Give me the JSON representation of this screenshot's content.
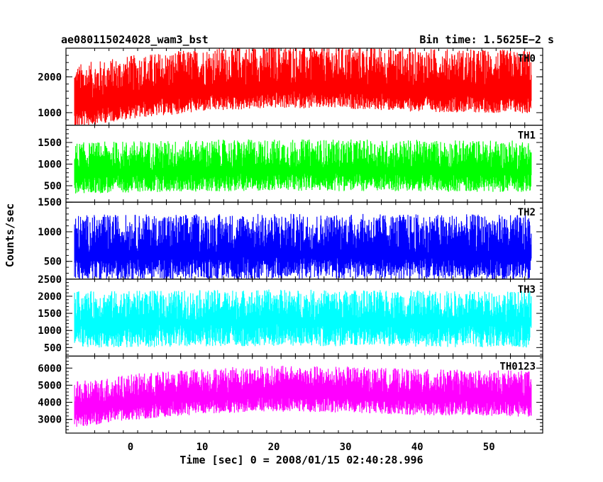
{
  "header": {
    "title": "ae080115024028_wam3_bst",
    "bin_time": "Bin time: 1.5625E−2 s"
  },
  "axes": {
    "xlabel": "Time [sec] 0 = 2008/01/15 02:40:28.996",
    "ylabel": "Counts/sec"
  },
  "chart_data": {
    "type": "line",
    "title": "ae080115024028_wam3_bst",
    "xlabel": "Time [sec] 0 = 2008/01/15 02:40:28.996",
    "ylabel": "Counts/sec",
    "xlim": [
      -9,
      57.5
    ],
    "x_range": [
      -7.8,
      55.9
    ],
    "x_ticks": [
      0,
      10,
      20,
      30,
      40,
      50
    ],
    "panels": [
      {
        "name": "TH0",
        "color": "#ff0000",
        "ylim": [
          650,
          2800
        ],
        "yticks": [
          1000,
          2000
        ],
        "noise": [
          1100,
          480,
          650
        ],
        "trend": [
          [
            -7.8,
            1250
          ],
          [
            0,
            1500
          ],
          [
            10,
            1700
          ],
          [
            20,
            1800
          ],
          [
            30,
            1780
          ],
          [
            40,
            1700
          ],
          [
            55.9,
            1650
          ]
        ]
      },
      {
        "name": "TH1",
        "color": "#00ff00",
        "ylim": [
          120,
          1900
        ],
        "yticks": [
          500,
          1000,
          1500
        ],
        "noise": [
          700,
          420,
          250
        ],
        "trend": [
          [
            -7.8,
            800
          ],
          [
            0,
            840
          ],
          [
            20,
            880
          ],
          [
            40,
            860
          ],
          [
            55.9,
            850
          ]
        ]
      },
      {
        "name": "TH2",
        "color": "#0000ff",
        "ylim": [
          200,
          1500
        ],
        "yticks": [
          500,
          1000,
          1500
        ],
        "noise": [
          650,
          380,
          260
        ],
        "trend": [
          [
            -7.8,
            640
          ],
          [
            20,
            660
          ],
          [
            40,
            650
          ],
          [
            55.9,
            640
          ]
        ]
      },
      {
        "name": "TH3",
        "color": "#00ffff",
        "ylim": [
          250,
          2500
        ],
        "yticks": [
          500,
          1000,
          1500,
          2000,
          2500
        ],
        "noise": [
          900,
          650,
          350
        ],
        "trend": [
          [
            -7.8,
            1250
          ],
          [
            20,
            1300
          ],
          [
            40,
            1270
          ],
          [
            55.9,
            1250
          ]
        ]
      },
      {
        "name": "TH0123",
        "color": "#ff00ff",
        "ylim": [
          2200,
          6700
        ],
        "yticks": [
          3000,
          4000,
          5000,
          6000
        ],
        "noise": [
          1500,
          900,
          1000
        ],
        "trend": [
          [
            -7.8,
            3700
          ],
          [
            0,
            4150
          ],
          [
            10,
            4500
          ],
          [
            20,
            4650
          ],
          [
            30,
            4600
          ],
          [
            40,
            4450
          ],
          [
            55.9,
            4350
          ]
        ]
      }
    ]
  }
}
